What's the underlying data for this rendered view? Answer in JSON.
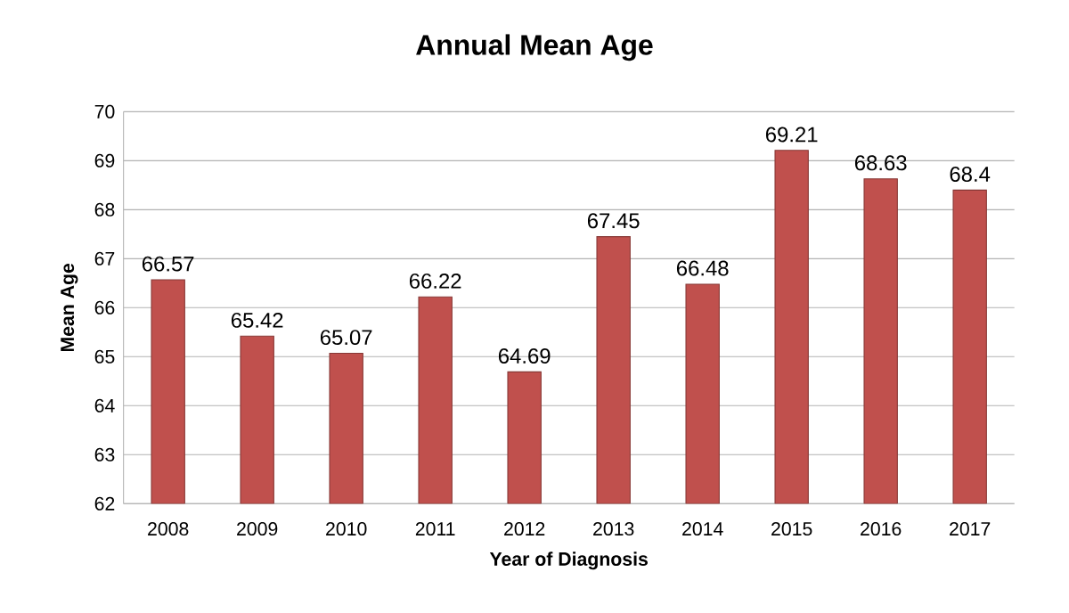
{
  "chart_data": {
    "type": "bar",
    "title": "Annual Mean Age",
    "xlabel": "Year of Diagnosis",
    "ylabel": "Mean Age",
    "categories": [
      "2008",
      "2009",
      "2010",
      "2011",
      "2012",
      "2013",
      "2014",
      "2015",
      "2016",
      "2017"
    ],
    "values": [
      66.57,
      65.42,
      65.07,
      66.22,
      64.69,
      67.45,
      66.48,
      69.21,
      68.63,
      68.4
    ],
    "color": "#c0504d",
    "ylim": [
      62,
      70
    ],
    "yticks": [
      62,
      63,
      64,
      65,
      66,
      67,
      68,
      69,
      70
    ],
    "grid": "y",
    "data_labels": true
  }
}
